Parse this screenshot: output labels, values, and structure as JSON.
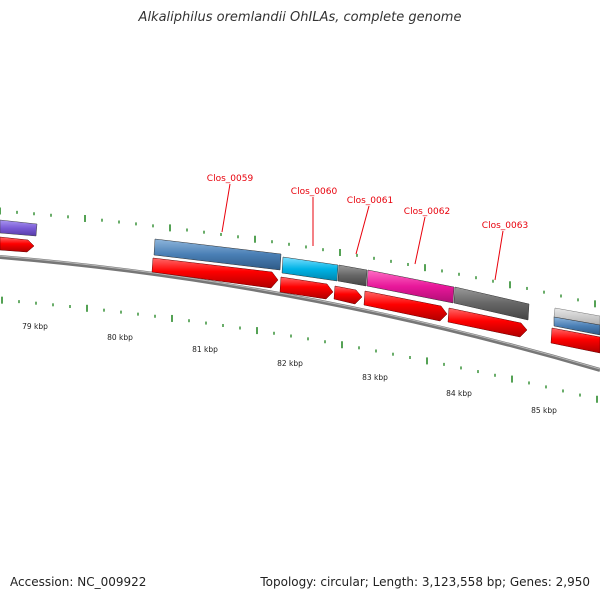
{
  "title": "Alkaliphilus oremlandii OhILAs, complete genome",
  "footer": {
    "accession": "Accession: NC_009922",
    "stats": "Topology: circular; Length: 3,123,558 bp; Genes: 2,950"
  },
  "gene_labels": [
    "Clos_0059",
    "Clos_0060",
    "Clos_0061",
    "Clos_0062",
    "Clos_0063"
  ],
  "kbp_labels": [
    "79 kbp",
    "80 kbp",
    "81 kbp",
    "82 kbp",
    "83 kbp",
    "84 kbp",
    "85 kbp"
  ],
  "colors": {
    "cds_arrow": "#ff0000",
    "backbone": "#777777",
    "tick": "#2a8a2a",
    "label": "#e8000b",
    "blue": "#4a7fb5",
    "cyan": "#00b3e6",
    "gray": "#666666",
    "magenta": "#e8179a",
    "purple": "#7b5cd6"
  }
}
